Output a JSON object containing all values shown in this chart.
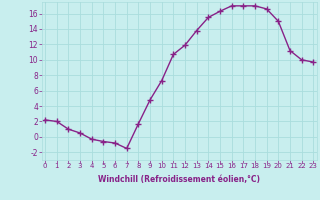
{
  "x": [
    0,
    1,
    2,
    3,
    4,
    5,
    6,
    7,
    8,
    9,
    10,
    11,
    12,
    13,
    14,
    15,
    16,
    17,
    18,
    19,
    20,
    21,
    22,
    23
  ],
  "y": [
    2.2,
    2.0,
    1.0,
    0.5,
    -0.3,
    -0.6,
    -0.8,
    -1.5,
    1.7,
    4.8,
    7.3,
    10.7,
    11.9,
    13.8,
    15.5,
    16.3,
    17.0,
    17.0,
    17.0,
    16.6,
    15.0,
    11.2,
    10.0,
    9.7
  ],
  "line_color": "#882288",
  "marker": "+",
  "marker_size": 4,
  "marker_lw": 1.0,
  "bg_color": "#c8eeee",
  "grid_color": "#aadddd",
  "xlabel": "Windchill (Refroidissement éolien,°C)",
  "xlabel_color": "#882288",
  "ylabel_ticks": [
    -2,
    0,
    2,
    4,
    6,
    8,
    10,
    12,
    14,
    16
  ],
  "ylim": [
    -3.0,
    17.5
  ],
  "xlim": [
    -0.3,
    23.3
  ],
  "tick_color": "#882288",
  "font_color": "#882288",
  "xtick_fontsize": 5.0,
  "ytick_fontsize": 5.5,
  "xlabel_fontsize": 5.5,
  "linewidth": 1.0
}
